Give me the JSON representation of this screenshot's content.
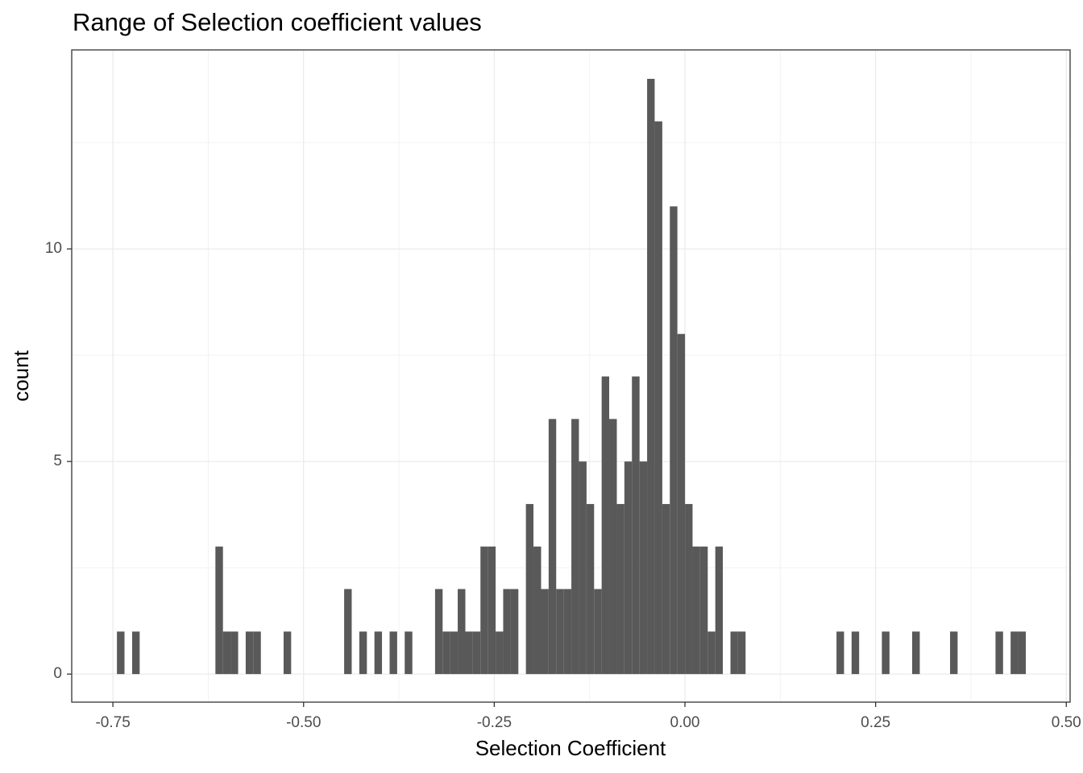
{
  "chart_data": {
    "type": "histogram",
    "title": "Range of Selection coefficient values",
    "x_label": "Selection Coefficient",
    "y_label": "count",
    "color": "#595959",
    "grid": true,
    "bins": [
      -0.7447,
      -0.7348,
      -0.7248,
      -0.7149,
      -0.705,
      -0.6951,
      -0.6851,
      -0.6752,
      -0.6653,
      -0.6553,
      -0.6454,
      -0.6355,
      -0.6255,
      -0.6156,
      -0.6057,
      -0.5958,
      -0.5858,
      -0.5759,
      -0.566,
      -0.556,
      -0.5461,
      -0.5362,
      -0.5262,
      -0.5163,
      -0.5064,
      -0.4965,
      -0.4865,
      -0.4766,
      -0.4667,
      -0.4567,
      -0.4468,
      -0.4369,
      -0.4269,
      -0.417,
      -0.4071,
      -0.3972,
      -0.3872,
      -0.3773,
      -0.3674,
      -0.3574,
      -0.3475,
      -0.3376,
      -0.3276,
      -0.3177,
      -0.3078,
      -0.2979,
      -0.2879,
      -0.278,
      -0.2681,
      -0.2581,
      -0.2482,
      -0.2383,
      -0.2283,
      -0.2184,
      -0.2085,
      -0.1986,
      -0.1886,
      -0.1787,
      -0.1688,
      -0.1588,
      -0.1489,
      -0.139,
      -0.129,
      -0.1191,
      -0.1092,
      -0.0993,
      -0.0893,
      -0.0794,
      -0.0695,
      -0.0595,
      -0.0496,
      -0.0397,
      -0.0297,
      -0.0198,
      -0.0099,
      0.0001,
      0.01,
      0.0199,
      0.0299,
      0.0398,
      0.0497,
      0.0597,
      0.0696,
      0.0795,
      0.0894,
      0.0994,
      0.1093,
      0.1192,
      0.1292,
      0.1391,
      0.149,
      0.1589,
      0.1689,
      0.1788,
      0.1887,
      0.1987,
      0.2086,
      0.2185,
      0.2284,
      0.2384,
      0.2483,
      0.2582,
      0.2682,
      0.2781,
      0.288,
      0.2979,
      0.3079,
      0.3178,
      0.3277,
      0.3377,
      0.3476,
      0.3575,
      0.3674,
      0.3774,
      0.3873,
      0.3972,
      0.4072,
      0.4171,
      0.427,
      0.4369,
      0.4469
    ],
    "values": [
      1,
      0,
      1,
      0,
      0,
      0,
      0,
      0,
      0,
      0,
      0,
      0,
      0,
      3,
      1,
      1,
      0,
      1,
      1,
      0,
      0,
      0,
      1,
      0,
      0,
      0,
      0,
      0,
      0,
      0,
      2,
      0,
      1,
      0,
      1,
      0,
      1,
      0,
      1,
      0,
      0,
      0,
      2,
      1,
      1,
      2,
      1,
      1,
      3,
      3,
      1,
      2,
      2,
      0,
      4,
      3,
      2,
      6,
      2,
      2,
      6,
      5,
      4,
      2,
      7,
      6,
      4,
      5,
      7,
      5,
      14,
      13,
      4,
      11,
      8,
      4,
      3,
      3,
      1,
      3,
      0,
      1,
      1,
      0,
      0,
      0,
      0,
      0,
      0,
      0,
      0,
      0,
      0,
      0,
      0,
      1,
      0,
      1,
      0,
      0,
      0,
      1,
      0,
      0,
      0,
      1,
      0,
      0,
      0,
      0,
      1,
      0,
      0,
      0,
      0,
      0,
      1,
      0,
      1,
      1
    ],
    "xlim": [
      -0.804,
      0.505
    ],
    "ylim": [
      -0.66,
      14.68
    ],
    "xticks": [
      {
        "value": -0.75,
        "label": "-0.75"
      },
      {
        "value": -0.5,
        "label": "-0.50"
      },
      {
        "value": -0.25,
        "label": "-0.25"
      },
      {
        "value": 0,
        "label": "0.00"
      },
      {
        "value": 0.25,
        "label": "0.25"
      },
      {
        "value": 0.5,
        "label": "0.50"
      }
    ],
    "yticks": [
      0,
      5,
      10
    ]
  }
}
